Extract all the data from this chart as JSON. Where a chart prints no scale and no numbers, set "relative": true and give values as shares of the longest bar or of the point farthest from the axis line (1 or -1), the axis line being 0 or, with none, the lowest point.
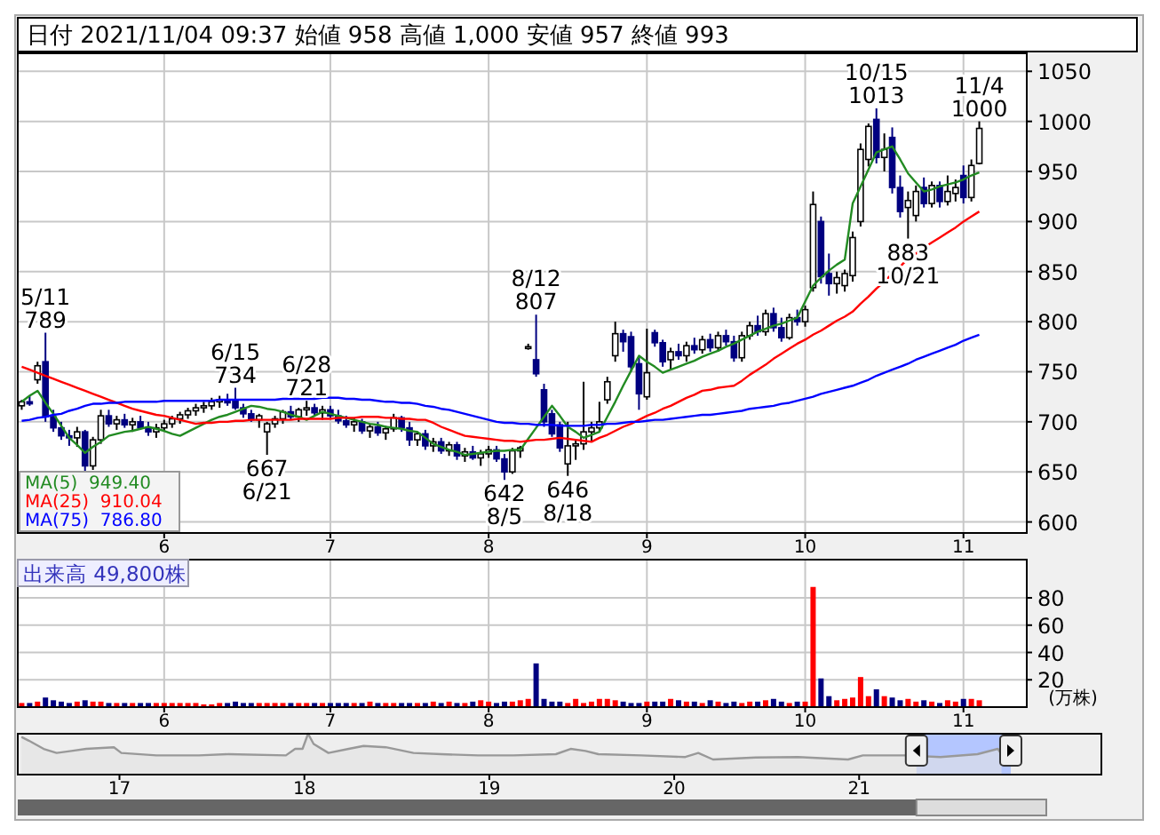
{
  "chart_data": [
    {
      "type": "candlestick",
      "title": "日付 2021/11/04 09:37 始値 958 高値 1,000 安値 957 終値 993",
      "categories": [
        null,
        null,
        null,
        null,
        null,
        null,
        null,
        null,
        null,
        null,
        null,
        null,
        null,
        null,
        null,
        null,
        null,
        null,
        "6",
        null,
        null,
        null,
        null,
        null,
        null,
        null,
        null,
        null,
        null,
        null,
        null,
        null,
        null,
        null,
        null,
        null,
        null,
        null,
        null,
        "7",
        null,
        null,
        null,
        null,
        null,
        null,
        null,
        null,
        null,
        null,
        null,
        null,
        null,
        null,
        null,
        null,
        null,
        null,
        null,
        "8",
        null,
        null,
        null,
        null,
        null,
        null,
        null,
        null,
        null,
        null,
        null,
        null,
        null,
        null,
        null,
        null,
        null,
        null,
        null,
        "9",
        null,
        null,
        null,
        null,
        null,
        null,
        null,
        null,
        null,
        null,
        null,
        null,
        null,
        null,
        null,
        null,
        null,
        null,
        null,
        "10",
        null,
        null,
        null,
        null,
        null,
        null,
        null,
        null,
        null,
        null,
        null,
        null,
        null,
        null,
        null,
        null,
        null,
        null,
        null,
        "11",
        null,
        null
      ],
      "ohlc": [
        [
          716,
          722,
          712,
          720
        ],
        [
          720,
          726,
          716,
          718
        ],
        [
          742,
          760,
          738,
          756
        ],
        [
          760,
          789,
          700,
          705
        ],
        [
          705,
          712,
          690,
          694
        ],
        [
          694,
          700,
          682,
          686
        ],
        [
          686,
          692,
          676,
          684
        ],
        [
          684,
          695,
          675,
          690
        ],
        [
          690,
          692,
          648,
          656
        ],
        [
          656,
          685,
          652,
          682
        ],
        [
          682,
          712,
          678,
          706
        ],
        [
          706,
          712,
          695,
          698
        ],
        [
          698,
          706,
          692,
          702
        ],
        [
          702,
          708,
          694,
          697
        ],
        [
          697,
          704,
          690,
          700
        ],
        [
          700,
          706,
          692,
          694
        ],
        [
          694,
          700,
          686,
          690
        ],
        [
          690,
          698,
          684,
          694
        ],
        [
          694,
          702,
          690,
          698
        ],
        [
          698,
          706,
          694,
          703
        ],
        [
          703,
          710,
          698,
          707
        ],
        [
          707,
          714,
          703,
          711
        ],
        [
          711,
          718,
          706,
          714
        ],
        [
          714,
          720,
          709,
          716
        ],
        [
          716,
          724,
          712,
          720
        ],
        [
          720,
          726,
          714,
          722
        ],
        [
          722,
          728,
          716,
          719
        ],
        [
          722,
          734,
          712,
          714
        ],
        [
          714,
          718,
          704,
          708
        ],
        [
          708,
          712,
          700,
          702
        ],
        [
          702,
          708,
          694,
          706
        ],
        [
          690,
          700,
          667,
          698
        ],
        [
          698,
          706,
          694,
          703
        ],
        [
          703,
          712,
          698,
          710
        ],
        [
          710,
          716,
          702,
          705
        ],
        [
          705,
          714,
          700,
          712
        ],
        [
          712,
          721,
          706,
          714
        ],
        [
          714,
          718,
          706,
          709
        ],
        [
          709,
          716,
          702,
          712
        ],
        [
          712,
          716,
          704,
          706
        ],
        [
          706,
          712,
          698,
          701
        ],
        [
          701,
          706,
          694,
          697
        ],
        [
          697,
          704,
          690,
          700
        ],
        [
          700,
          703,
          688,
          691
        ],
        [
          691,
          698,
          684,
          695
        ],
        [
          695,
          700,
          686,
          689
        ],
        [
          689,
          696,
          682,
          693
        ],
        [
          693,
          708,
          690,
          704
        ],
        [
          704,
          706,
          690,
          694
        ],
        [
          694,
          700,
          676,
          682
        ],
        [
          682,
          690,
          676,
          688
        ],
        [
          688,
          692,
          672,
          676
        ],
        [
          676,
          684,
          670,
          680
        ],
        [
          680,
          684,
          668,
          671
        ],
        [
          671,
          680,
          666,
          677
        ],
        [
          677,
          680,
          662,
          666
        ],
        [
          666,
          674,
          660,
          670
        ],
        [
          670,
          676,
          662,
          664
        ],
        [
          664,
          672,
          656,
          668
        ],
        [
          668,
          676,
          664,
          672
        ],
        [
          672,
          676,
          660,
          663
        ],
        [
          663,
          668,
          642,
          650
        ],
        [
          650,
          674,
          648,
          671
        ],
        [
          671,
          676,
          664,
          674
        ],
        [
          775,
          778,
          772,
          775
        ],
        [
          762,
          807,
          745,
          748
        ],
        [
          732,
          738,
          695,
          700
        ],
        [
          708,
          712,
          685,
          688
        ],
        [
          697,
          700,
          670,
          674
        ],
        [
          658,
          700,
          646,
          676
        ],
        [
          676,
          682,
          662,
          678
        ],
        [
          678,
          740,
          672,
          690
        ],
        [
          690,
          700,
          680,
          694
        ],
        [
          694,
          720,
          690,
          700
        ],
        [
          722,
          745,
          718,
          740
        ],
        [
          766,
          800,
          760,
          788
        ],
        [
          788,
          792,
          770,
          780
        ],
        [
          785,
          790,
          750,
          755
        ],
        [
          758,
          764,
          712,
          728
        ],
        [
          725,
          793,
          722,
          749
        ],
        [
          789,
          792,
          775,
          779
        ],
        [
          779,
          782,
          755,
          760
        ],
        [
          762,
          774,
          752,
          770
        ],
        [
          770,
          778,
          762,
          766
        ],
        [
          766,
          780,
          760,
          776
        ],
        [
          776,
          784,
          768,
          772
        ],
        [
          772,
          786,
          768,
          782
        ],
        [
          782,
          788,
          770,
          774
        ],
        [
          774,
          790,
          770,
          786
        ],
        [
          786,
          792,
          776,
          780
        ],
        [
          780,
          786,
          760,
          764
        ],
        [
          764,
          790,
          760,
          786
        ],
        [
          786,
          800,
          782,
          796
        ],
        [
          796,
          806,
          786,
          790
        ],
        [
          790,
          812,
          786,
          808
        ],
        [
          808,
          814,
          790,
          794
        ],
        [
          794,
          804,
          780,
          784
        ],
        [
          784,
          808,
          782,
          804
        ],
        [
          804,
          812,
          796,
          800
        ],
        [
          800,
          816,
          795,
          812
        ],
        [
          834,
          930,
          830,
          917
        ],
        [
          900,
          905,
          838,
          845
        ],
        [
          848,
          868,
          826,
          838
        ],
        [
          838,
          850,
          828,
          844
        ],
        [
          836,
          852,
          830,
          848
        ],
        [
          846,
          890,
          840,
          884
        ],
        [
          900,
          978,
          895,
          972
        ],
        [
          962,
          998,
          955,
          995
        ],
        [
          1002,
          1013,
          958,
          964
        ],
        [
          964,
          988,
          950,
          972
        ],
        [
          984,
          994,
          928,
          934
        ],
        [
          934,
          946,
          904,
          910
        ],
        [
          914,
          930,
          883,
          921
        ],
        [
          906,
          936,
          900,
          930
        ],
        [
          934,
          944,
          914,
          918
        ],
        [
          918,
          940,
          914,
          936
        ],
        [
          936,
          940,
          914,
          920
        ],
        [
          920,
          946,
          916,
          930
        ],
        [
          928,
          942,
          920,
          934
        ],
        [
          946,
          956,
          918,
          924
        ],
        [
          924,
          962,
          920,
          956
        ],
        [
          958,
          1000,
          957,
          993
        ]
      ],
      "series": [
        {
          "type": "line",
          "name": "MA(5)  949.40",
          "color": "#228b22",
          "values": [
            720,
            726,
            731,
            719,
            708,
            696,
            684,
            677,
            669,
            675,
            680,
            686,
            688,
            690,
            691,
            693,
            695,
            693,
            691,
            688,
            686,
            690,
            694,
            698,
            702,
            705,
            707,
            710,
            713,
            716,
            715,
            713,
            712,
            710,
            707,
            705,
            702,
            706,
            710,
            708,
            706,
            704,
            702,
            700,
            698,
            697,
            695,
            694,
            693,
            691,
            690,
            684,
            678,
            675,
            672,
            670,
            667,
            668,
            669,
            670,
            671,
            671,
            672,
            672,
            683,
            694,
            705,
            716,
            706,
            695,
            690,
            684,
            687,
            690,
            705,
            720,
            736,
            751,
            766,
            760,
            755,
            749,
            752,
            755,
            758,
            761,
            765,
            768,
            771,
            775,
            778,
            782,
            786,
            790,
            793,
            796,
            798,
            801,
            804,
            820,
            836,
            844,
            851,
            857,
            862,
            918,
            935,
            952,
            969,
            972,
            975,
            962,
            948,
            939,
            930,
            932,
            935,
            937,
            939,
            942,
            946,
            949
          ]
        },
        {
          "type": "line",
          "name": "MA(25)  910.04",
          "color": "#ff0000",
          "values": [
            755,
            752,
            749,
            746,
            743,
            740,
            737,
            734,
            731,
            728,
            725,
            722,
            719,
            716,
            713,
            711,
            709,
            707,
            706,
            704,
            702,
            700,
            698,
            699,
            699,
            700,
            700,
            701,
            701,
            702,
            702,
            702,
            702,
            702,
            702,
            703,
            703,
            703,
            703,
            703,
            704,
            704,
            704,
            705,
            705,
            705,
            704,
            704,
            703,
            703,
            702,
            702,
            699,
            695,
            692,
            689,
            686,
            685,
            684,
            683,
            682,
            681,
            681,
            680,
            681,
            682,
            682,
            683,
            684,
            683,
            682,
            681,
            680,
            684,
            687,
            691,
            695,
            698,
            702,
            706,
            709,
            713,
            716,
            720,
            724,
            727,
            731,
            732,
            734,
            735,
            736,
            741,
            747,
            752,
            757,
            763,
            768,
            773,
            778,
            782,
            787,
            791,
            796,
            801,
            805,
            810,
            818,
            825,
            833,
            840,
            848,
            855,
            863,
            868,
            874,
            879,
            884,
            889,
            894,
            900,
            905,
            910
          ]
        },
        {
          "type": "line",
          "name": "MA(75)  786.80",
          "color": "#0000ff",
          "values": [
            701,
            702,
            704,
            705,
            707,
            708,
            711,
            713,
            716,
            718,
            718,
            719,
            719,
            720,
            720,
            720,
            720,
            720,
            721,
            721,
            721,
            721,
            721,
            721,
            721,
            722,
            722,
            722,
            722,
            722,
            722,
            722,
            722,
            723,
            723,
            723,
            723,
            723,
            724,
            724,
            724,
            723,
            723,
            722,
            722,
            721,
            720,
            720,
            719,
            719,
            718,
            716,
            715,
            713,
            712,
            710,
            708,
            706,
            704,
            702,
            700,
            699,
            699,
            698,
            698,
            697,
            697,
            697,
            696,
            696,
            696,
            696,
            697,
            697,
            698,
            698,
            699,
            700,
            700,
            701,
            702,
            702,
            703,
            704,
            705,
            706,
            707,
            707,
            708,
            709,
            710,
            711,
            713,
            714,
            715,
            716,
            718,
            719,
            721,
            723,
            725,
            728,
            730,
            732,
            734,
            736,
            739,
            742,
            746,
            749,
            752,
            755,
            758,
            762,
            765,
            768,
            771,
            774,
            777,
            781,
            784,
            787
          ]
        }
      ],
      "annotations": [
        {
          "text": "5/11\n789",
          "y": 789
        },
        {
          "text": "6/15\n734",
          "y": 734
        },
        {
          "text": "667\n6/21",
          "y": 667
        },
        {
          "text": "6/28\n721",
          "y": 721
        },
        {
          "text": "642\n8/5",
          "y": 642
        },
        {
          "text": "8/12\n807",
          "y": 807
        },
        {
          "text": "646\n8/18",
          "y": 646
        },
        {
          "text": "10/15\n1013",
          "y": 1013
        },
        {
          "text": "883\n10/21",
          "y": 883
        },
        {
          "text": "11/4\n1000",
          "y": 1000
        }
      ],
      "ylim": [
        589,
        1068
      ],
      "yticks": [
        600,
        650,
        700,
        750,
        800,
        850,
        900,
        950,
        1000,
        1050
      ],
      "grid": true,
      "legend": "bottom left"
    },
    {
      "type": "bar",
      "title": "出来高 49,800株",
      "ylabel": "(万株)",
      "categories": [
        null,
        null,
        null,
        null,
        null,
        null,
        null,
        null,
        null,
        null,
        null,
        null,
        null,
        null,
        null,
        null,
        null,
        null,
        "6",
        null,
        null,
        null,
        null,
        null,
        null,
        null,
        null,
        null,
        null,
        null,
        null,
        null,
        null,
        null,
        null,
        null,
        null,
        null,
        null,
        "7",
        null,
        null,
        null,
        null,
        null,
        null,
        null,
        null,
        null,
        null,
        null,
        null,
        null,
        null,
        null,
        null,
        null,
        null,
        null,
        "8",
        null,
        null,
        null,
        null,
        null,
        null,
        null,
        null,
        null,
        null,
        null,
        null,
        null,
        null,
        null,
        null,
        null,
        null,
        null,
        "9",
        null,
        null,
        null,
        null,
        null,
        null,
        null,
        null,
        null,
        null,
        null,
        null,
        null,
        null,
        null,
        null,
        null,
        null,
        null,
        "10",
        null,
        null,
        null,
        null,
        null,
        null,
        null,
        null,
        null,
        null,
        null,
        null,
        null,
        null,
        null,
        null,
        null,
        null,
        null,
        "11",
        null,
        null
      ],
      "values": [
        3,
        3,
        4,
        7,
        5,
        4,
        3,
        4,
        5,
        4,
        4,
        3,
        3,
        3,
        3,
        3,
        3,
        3,
        3,
        3,
        3,
        3,
        3,
        2,
        2,
        3,
        3,
        4,
        3,
        3,
        3,
        3,
        3,
        3,
        3,
        3,
        3,
        3,
        3,
        3,
        3,
        3,
        3,
        3,
        4,
        3,
        3,
        3,
        3,
        3,
        3,
        3,
        4,
        3,
        4,
        3,
        3,
        4,
        5,
        4,
        3,
        4,
        4,
        5,
        6,
        32,
        6,
        4,
        4,
        3,
        6,
        3,
        4,
        6,
        6,
        5,
        4,
        3,
        3,
        4,
        4,
        4,
        6,
        5,
        4,
        4,
        3,
        5,
        4,
        3,
        4,
        3,
        4,
        4,
        5,
        6,
        4,
        3,
        4,
        4,
        88,
        21,
        8,
        5,
        6,
        7,
        22,
        8,
        13,
        8,
        7,
        5,
        6,
        4,
        5,
        4,
        3,
        5,
        4,
        6,
        6,
        5
      ],
      "colors": [
        "#ff0000",
        "#000080",
        "#ff0000",
        "#000080",
        "#000080",
        "#000080",
        "#000080",
        "#ff0000",
        "#000080",
        "#ff0000",
        "#ff0000",
        "#000080",
        "#ff0000",
        "#000080",
        "#ff0000",
        "#000080",
        "#000080",
        "#ff0000",
        "#ff0000",
        "#ff0000",
        "#ff0000",
        "#ff0000",
        "#ff0000",
        "#ff0000",
        "#ff0000",
        "#ff0000",
        "#000080",
        "#000080",
        "#000080",
        "#000080",
        "#ff0000",
        "#ff0000",
        "#ff0000",
        "#ff0000",
        "#000080",
        "#ff0000",
        "#ff0000",
        "#000080",
        "#ff0000",
        "#000080",
        "#000080",
        "#000080",
        "#ff0000",
        "#000080",
        "#ff0000",
        "#000080",
        "#ff0000",
        "#ff0000",
        "#000080",
        "#000080",
        "#ff0000",
        "#000080",
        "#ff0000",
        "#000080",
        "#ff0000",
        "#000080",
        "#ff0000",
        "#000080",
        "#ff0000",
        "#ff0000",
        "#000080",
        "#000080",
        "#ff0000",
        "#ff0000",
        "#ff0000",
        "#000080",
        "#000080",
        "#000080",
        "#000080",
        "#ff0000",
        "#ff0000",
        "#ff0000",
        "#ff0000",
        "#ff0000",
        "#ff0000",
        "#ff0000",
        "#000080",
        "#000080",
        "#000080",
        "#ff0000",
        "#000080",
        "#000080",
        "#ff0000",
        "#000080",
        "#ff0000",
        "#000080",
        "#ff0000",
        "#000080",
        "#ff0000",
        "#000080",
        "#000080",
        "#ff0000",
        "#ff0000",
        "#000080",
        "#ff0000",
        "#000080",
        "#000080",
        "#ff0000",
        "#000080",
        "#ff0000",
        "#ff0000",
        "#000080",
        "#000080",
        "#ff0000",
        "#ff0000",
        "#ff0000",
        "#ff0000",
        "#ff0000",
        "#000080",
        "#ff0000",
        "#000080",
        "#000080",
        "#ff0000",
        "#ff0000",
        "#000080",
        "#ff0000",
        "#000080",
        "#ff0000",
        "#ff0000",
        "#000080",
        "#ff0000",
        "#ff0000"
      ],
      "ylim": [
        0,
        108
      ],
      "yticks": [
        20,
        40,
        60,
        80
      ],
      "grid": true
    },
    {
      "type": "area",
      "relative": true,
      "tick_labels": "x",
      "x": [
        16.47,
        16.51,
        16.59,
        16.66,
        16.74,
        16.82,
        16.97,
        17.01,
        17.2,
        17.43,
        17.59,
        17.9,
        17.95,
        17.99,
        18.02,
        18.05,
        18.13,
        18.24,
        18.32,
        18.44,
        18.59,
        18.74,
        18.94,
        19.13,
        19.36,
        19.44,
        19.52,
        19.59,
        19.82,
        20.06,
        20.13,
        20.21,
        20.44,
        20.67,
        20.94,
        21.02,
        21.25,
        21.44,
        21.64,
        21.75,
        21.77
      ],
      "values": [
        0.92,
        0.83,
        0.63,
        0.53,
        0.58,
        0.63,
        0.67,
        0.53,
        0.47,
        0.47,
        0.5,
        0.47,
        0.63,
        0.63,
        1,
        0.75,
        0.53,
        0.63,
        0.7,
        0.67,
        0.53,
        0.5,
        0.47,
        0.47,
        0.5,
        0.63,
        0.58,
        0.5,
        0.47,
        0.43,
        0.53,
        0.37,
        0.42,
        0.43,
        0.37,
        0.47,
        0.47,
        0.43,
        0.5,
        0.63,
        0.5
      ],
      "color": "#999999",
      "bands": [
        {
          "axis": "x",
          "from": 21.31,
          "to": 21.82,
          "color": "#b4c6ff"
        }
      ],
      "xlim": [
        16.45,
        22.31
      ],
      "xticks": [
        17,
        18,
        19,
        20,
        21
      ]
    }
  ]
}
